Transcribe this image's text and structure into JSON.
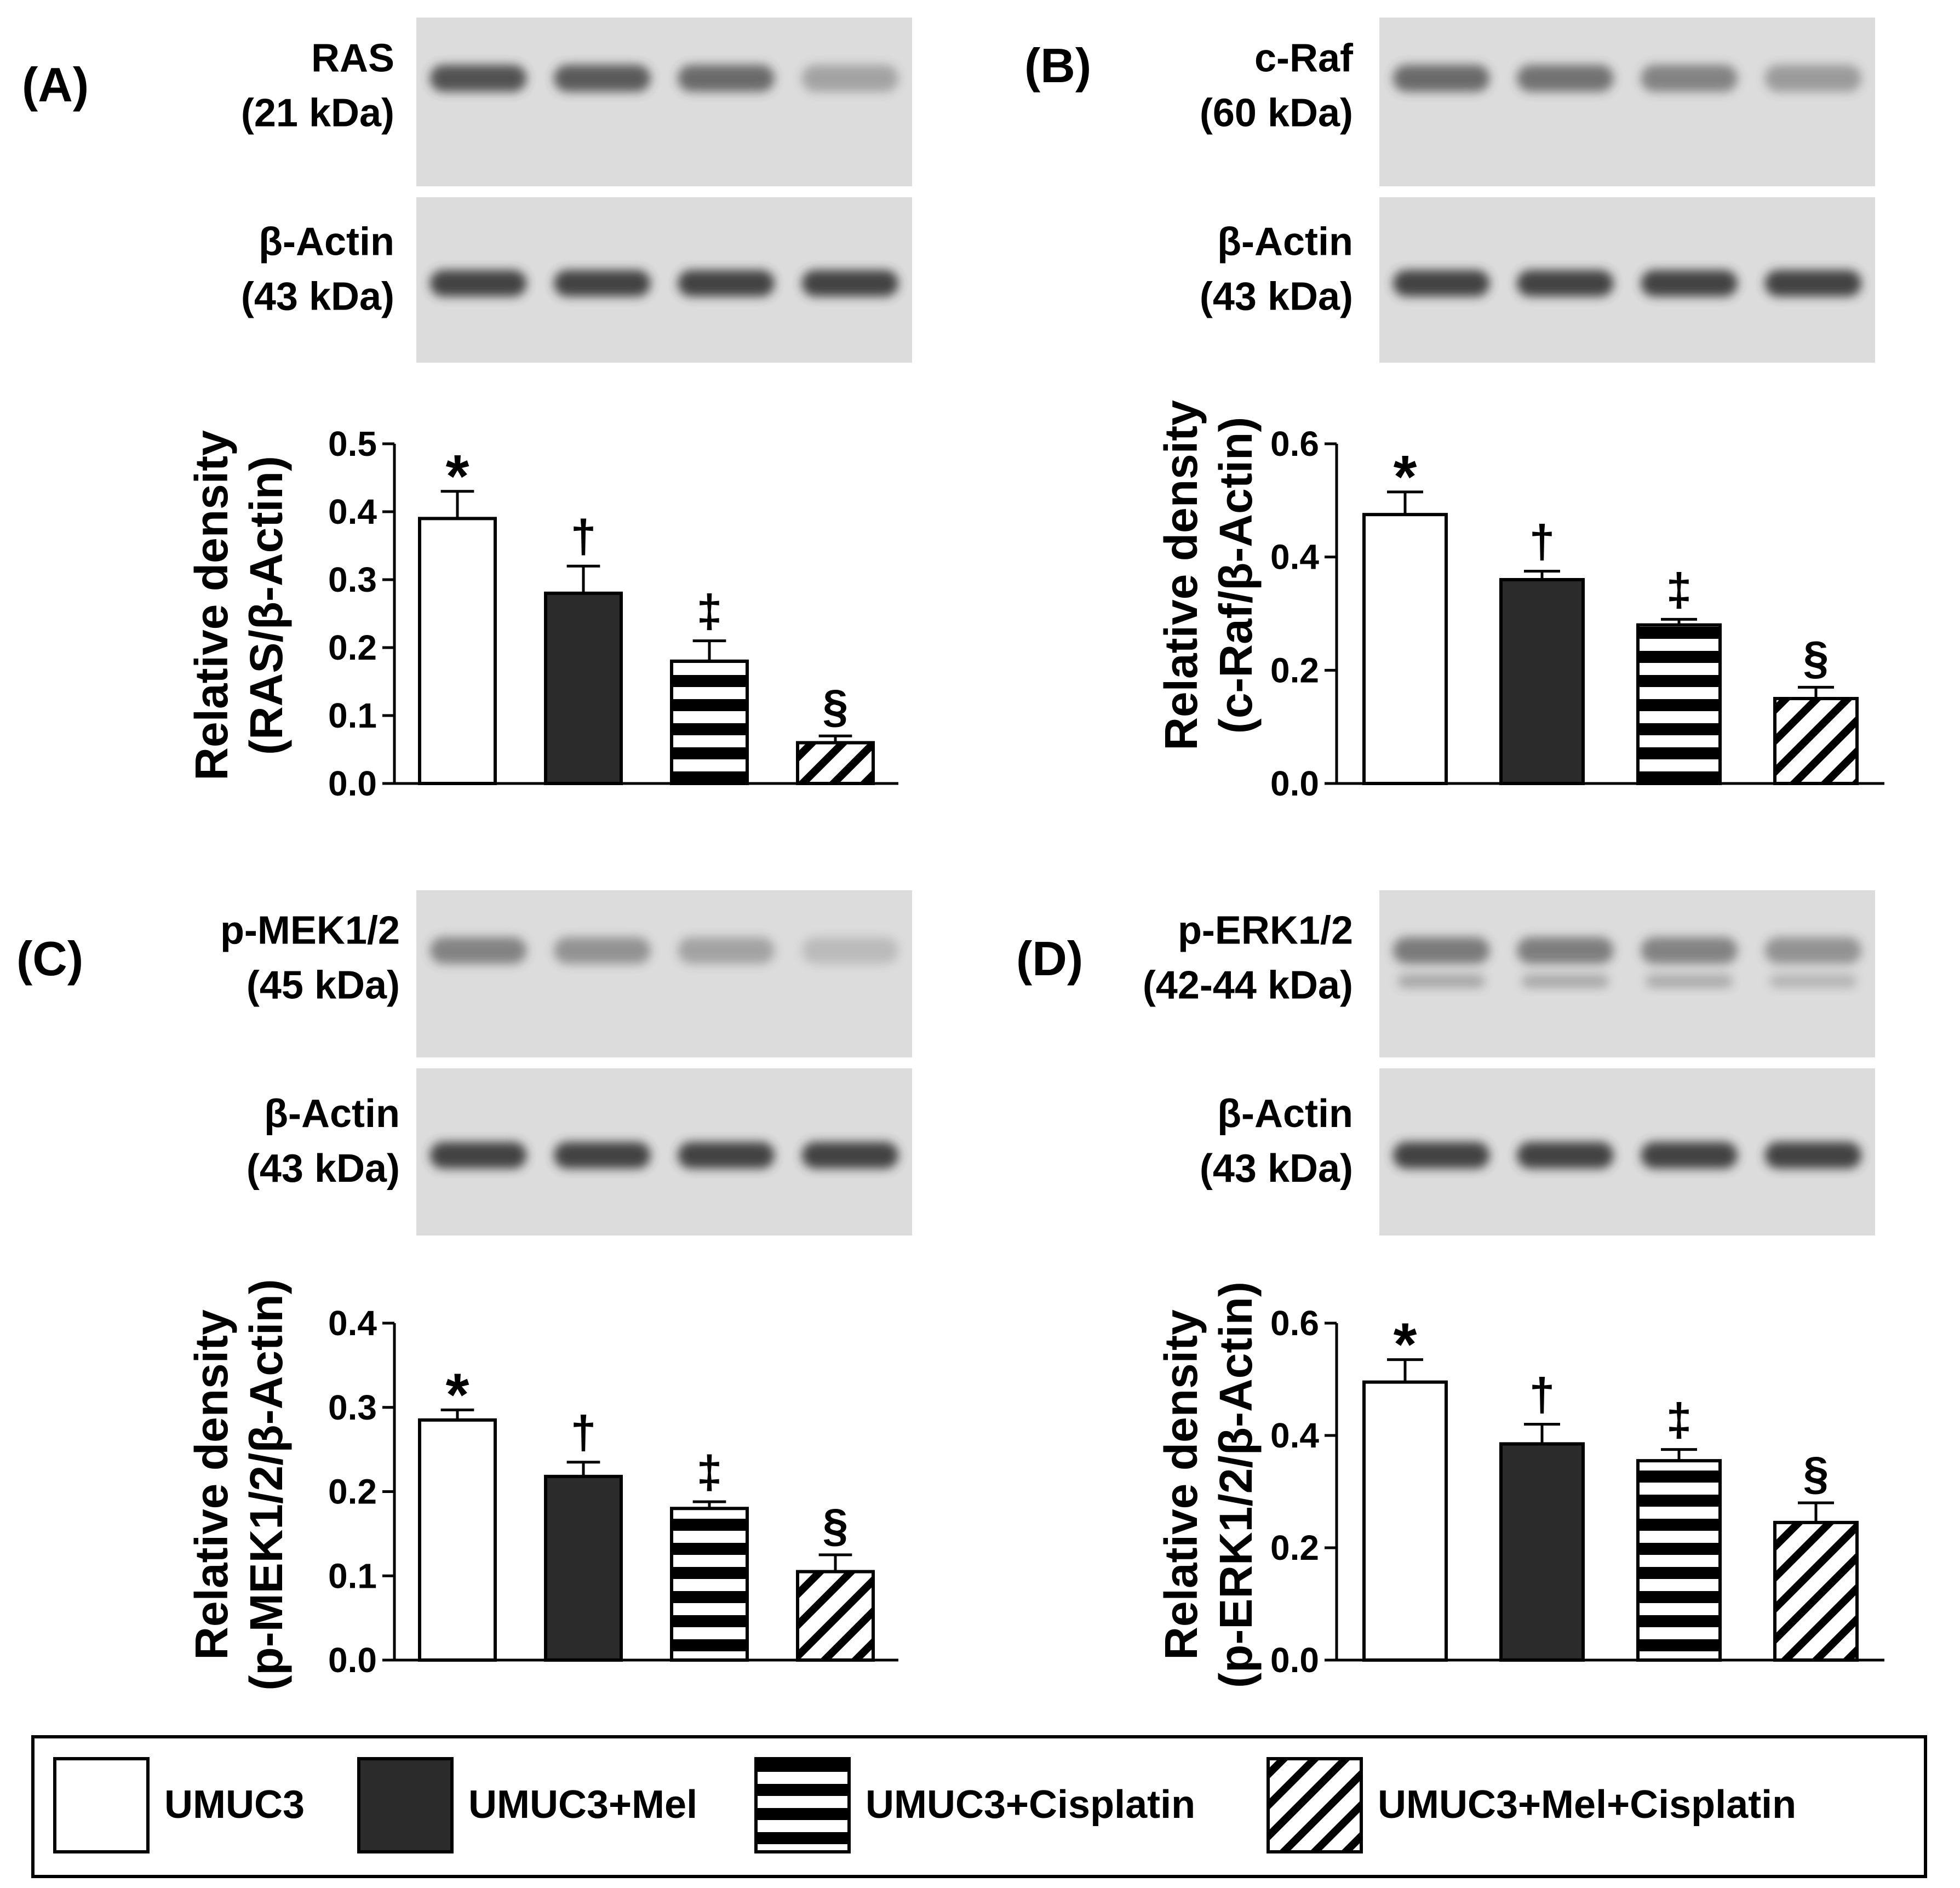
{
  "colors": {
    "bar_stroke": "#000000",
    "fill_umuc3": "#ffffff",
    "fill_mel": "#2b2b2b",
    "blot_background": "#dcdcdc",
    "band": "#3a3a3a"
  },
  "legend": {
    "items": [
      {
        "label": "UMUC3",
        "pattern": "white"
      },
      {
        "label": "UMUC3+Mel",
        "pattern": "black"
      },
      {
        "label": "UMUC3+Cisplatin",
        "pattern": "horizontal-lines"
      },
      {
        "label": "UMUC3+Mel+Cisplatin",
        "pattern": "diagonal-lines"
      }
    ]
  },
  "panels": [
    {
      "letter": "(A)",
      "blot_top": {
        "protein": "RAS",
        "size": "(21 kDa)",
        "band_intensity": [
          0.85,
          0.8,
          0.7,
          0.35
        ],
        "double_band": false
      },
      "blot_bottom": {
        "protein": "β-Actin",
        "size": "(43 kDa)",
        "band_intensity": [
          0.95,
          0.95,
          0.95,
          0.95
        ],
        "double_band": false
      },
      "chart": {
        "ylabel_line1": "Relative density",
        "ylabel_line2": "(RAS/β-Actin)"
      }
    },
    {
      "letter": "(B)",
      "blot_top": {
        "protein": "c-Raf",
        "size": "(60 kDa)",
        "band_intensity": [
          0.7,
          0.65,
          0.55,
          0.4
        ],
        "double_band": false
      },
      "blot_bottom": {
        "protein": "β-Actin",
        "size": "(43 kDa)",
        "band_intensity": [
          0.95,
          0.95,
          0.95,
          0.95
        ],
        "double_band": false
      },
      "chart": {
        "ylabel_line1": "Relative density",
        "ylabel_line2": "(c-Raf/β-Actin)"
      }
    },
    {
      "letter": "(C)",
      "blot_top": {
        "protein": "p-MEK1/2",
        "size": "(45 kDa)",
        "band_intensity": [
          0.55,
          0.45,
          0.35,
          0.2
        ],
        "double_band": false
      },
      "blot_bottom": {
        "protein": "β-Actin",
        "size": "(43 kDa)",
        "band_intensity": [
          0.95,
          0.95,
          0.95,
          0.95
        ],
        "double_band": false
      },
      "chart": {
        "ylabel_line1": "Relative density",
        "ylabel_line2": "(p-MEK1/2/β-Actin)"
      }
    },
    {
      "letter": "(D)",
      "blot_top": {
        "protein": "p-ERK1/2",
        "size": "(42-44 kDa)",
        "band_intensity": [
          0.6,
          0.58,
          0.55,
          0.45
        ],
        "double_band": true
      },
      "blot_bottom": {
        "protein": "β-Actin",
        "size": "(43 kDa)",
        "band_intensity": [
          0.95,
          0.95,
          0.95,
          0.95
        ],
        "double_band": false
      },
      "chart": {
        "ylabel_line1": "Relative density",
        "ylabel_line2": "(p-ERK1/2/β-Actin)"
      }
    }
  ],
  "chart_data": [
    {
      "type": "bar",
      "panel": "(A)",
      "categories": [
        "UMUC3",
        "UMUC3+Mel",
        "UMUC3+Cisplatin",
        "UMUC3+Mel+Cisplatin"
      ],
      "values": [
        0.39,
        0.28,
        0.18,
        0.06
      ],
      "errors": [
        0.04,
        0.04,
        0.03,
        0.01
      ],
      "significance": [
        "*",
        "†",
        "‡",
        "§"
      ],
      "ylabel": "Relative density (RAS/β-Actin)",
      "ylim": [
        0,
        0.5
      ],
      "yticks": [
        "0.0",
        "0.1",
        "0.2",
        "0.3",
        "0.4",
        "0.5"
      ]
    },
    {
      "type": "bar",
      "panel": "(B)",
      "categories": [
        "UMUC3",
        "UMUC3+Mel",
        "UMUC3+Cisplatin",
        "UMUC3+Mel+Cisplatin"
      ],
      "values": [
        0.475,
        0.36,
        0.28,
        0.15
      ],
      "errors": [
        0.04,
        0.015,
        0.01,
        0.02
      ],
      "significance": [
        "*",
        "†",
        "‡",
        "§"
      ],
      "ylabel": "Relative density (c-Raf/β-Actin)",
      "ylim": [
        0,
        0.6
      ],
      "yticks": [
        "0.0",
        "0.2",
        "0.4",
        "0.6"
      ]
    },
    {
      "type": "bar",
      "panel": "(C)",
      "categories": [
        "UMUC3",
        "UMUC3+Mel",
        "UMUC3+Cisplatin",
        "UMUC3+Mel+Cisplatin"
      ],
      "values": [
        0.285,
        0.218,
        0.18,
        0.105
      ],
      "errors": [
        0.012,
        0.017,
        0.008,
        0.02
      ],
      "significance": [
        "*",
        "†",
        "‡",
        "§"
      ],
      "ylabel": "Relative density (p-MEK1/2/β-Actin)",
      "ylim": [
        0,
        0.4
      ],
      "yticks": [
        "0.0",
        "0.1",
        "0.2",
        "0.3",
        "0.4"
      ]
    },
    {
      "type": "bar",
      "panel": "(D)",
      "categories": [
        "UMUC3",
        "UMUC3+Mel",
        "UMUC3+Cisplatin",
        "UMUC3+Mel+Cisplatin"
      ],
      "values": [
        0.495,
        0.385,
        0.355,
        0.245
      ],
      "errors": [
        0.04,
        0.035,
        0.02,
        0.035
      ],
      "significance": [
        "*",
        "†",
        "‡",
        "§"
      ],
      "ylabel": "Relative density (p-ERK1/2/β-Actin)",
      "ylim": [
        0,
        0.6
      ],
      "yticks": [
        "0.0",
        "0.2",
        "0.4",
        "0.6"
      ]
    }
  ]
}
